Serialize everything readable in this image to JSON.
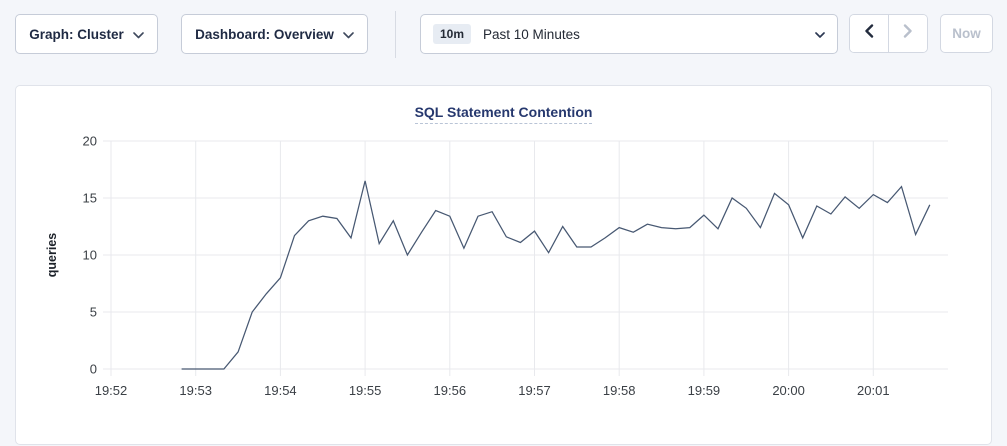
{
  "toolbar": {
    "graph_dropdown": {
      "label": "Graph: Cluster"
    },
    "dashboard_dropdown": {
      "label": "Dashboard: Overview"
    },
    "time_selector": {
      "badge": "10m",
      "label": "Past 10 Minutes"
    },
    "prev_button": {
      "enabled": true
    },
    "next_button": {
      "enabled": false
    },
    "now_button": {
      "label": "Now",
      "enabled": false
    }
  },
  "icons": {
    "graph_chevron": "chevron-down-icon",
    "dashboard_chevron": "chevron-down-icon",
    "time_chevron": "chevron-down-icon",
    "prev": "chevron-left-icon",
    "next": "chevron-right-icon"
  },
  "colors": {
    "page_bg": "#f4f6fa",
    "card_bg": "#ffffff",
    "line": "#475872",
    "grid": "#e8e9ed",
    "tick_text": "#3b4046",
    "title_text": "#26386e",
    "disabled_text": "#b9c0cc",
    "enabled_icon": "#242a35"
  },
  "chart_data": {
    "type": "line",
    "title": "SQL Statement Contention",
    "ylabel": "queries",
    "ylim": [
      0,
      20
    ],
    "yticks": [
      0,
      5,
      10,
      15,
      20
    ],
    "x_axis_start": "19:52",
    "xticks": [
      "19:52",
      "19:53",
      "19:54",
      "19:55",
      "19:56",
      "19:57",
      "19:58",
      "19:59",
      "20:00",
      "20:01"
    ],
    "xtick_offsets_sec": [
      0,
      60,
      120,
      180,
      240,
      300,
      360,
      420,
      480,
      540
    ],
    "grid": true,
    "legend": "none",
    "series_name": "queries",
    "point_interval_sec": 10,
    "points_t_sec": [
      50,
      60,
      70,
      80,
      90,
      100,
      110,
      120,
      130,
      140,
      150,
      160,
      170,
      180,
      190,
      200,
      210,
      220,
      230,
      240,
      250,
      260,
      270,
      280,
      290,
      300,
      310,
      320,
      330,
      340,
      350,
      360,
      370,
      380,
      390,
      400,
      410,
      420,
      430,
      440,
      450,
      460,
      470,
      480,
      490,
      500,
      510,
      520,
      530,
      540,
      550,
      560,
      570,
      580
    ],
    "values": [
      0,
      0,
      0,
      0,
      1.5,
      5.0,
      6.6,
      8.0,
      11.7,
      13.0,
      13.4,
      13.2,
      11.5,
      16.5,
      11.0,
      13.0,
      10.0,
      12.0,
      13.9,
      13.4,
      10.6,
      13.4,
      13.8,
      11.6,
      11.1,
      12.1,
      10.2,
      12.5,
      10.7,
      10.7,
      11.5,
      12.4,
      12.0,
      12.7,
      12.4,
      12.3,
      12.4,
      13.5,
      12.3,
      15.0,
      14.1,
      12.4,
      15.4,
      14.4,
      11.5,
      14.3,
      13.6,
      15.1,
      14.1,
      15.3,
      14.6,
      16.0,
      11.8,
      14.4
    ]
  }
}
